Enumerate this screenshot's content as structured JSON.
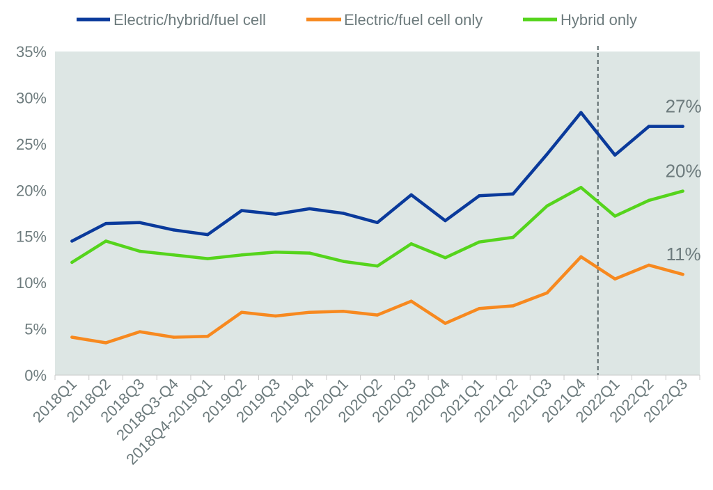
{
  "chart_data": {
    "type": "line",
    "categories": [
      "2018Q1",
      "2018Q2",
      "2018Q3",
      "2018Q3-Q4",
      "2018Q4-2019Q1",
      "2019Q2",
      "2019Q3",
      "2019Q4",
      "2020Q1",
      "2020Q2",
      "2020Q3",
      "2020Q4",
      "2021Q1",
      "2021Q2",
      "2021Q3",
      "2021Q4",
      "2022Q1",
      "2022Q2",
      "2022Q3"
    ],
    "ylim": [
      0,
      35
    ],
    "yticks": [
      "0%",
      "5%",
      "10%",
      "15%",
      "20%",
      "25%",
      "30%",
      "35%"
    ],
    "grid": false,
    "legend_position": "top",
    "plot_background": "#dde6e4",
    "marker_line": {
      "after_category": "2021Q4",
      "style": "dashed"
    },
    "series": [
      {
        "name": "Electric/hybrid/fuel cell",
        "color": "#0a3a9b",
        "values": [
          14.5,
          16.4,
          16.5,
          15.7,
          15.2,
          17.8,
          17.4,
          18.0,
          17.5,
          16.5,
          19.5,
          16.7,
          19.4,
          19.6,
          23.9,
          28.4,
          23.8,
          26.9,
          26.9
        ],
        "end_label": "27%"
      },
      {
        "name": "Electric/fuel cell only",
        "color": "#f7891f",
        "values": [
          4.1,
          3.5,
          4.7,
          4.1,
          4.2,
          6.8,
          6.4,
          6.8,
          6.9,
          6.5,
          8.0,
          5.6,
          7.2,
          7.5,
          8.9,
          12.8,
          10.4,
          11.9,
          10.9
        ],
        "end_label": "11%"
      },
      {
        "name": "Hybrid only",
        "color": "#55d41c",
        "values": [
          12.2,
          14.5,
          13.4,
          13.0,
          12.6,
          13.0,
          13.3,
          13.2,
          12.3,
          11.8,
          14.2,
          12.7,
          14.4,
          14.9,
          18.3,
          20.3,
          17.2,
          18.9,
          19.9
        ],
        "end_label": "20%"
      }
    ]
  }
}
